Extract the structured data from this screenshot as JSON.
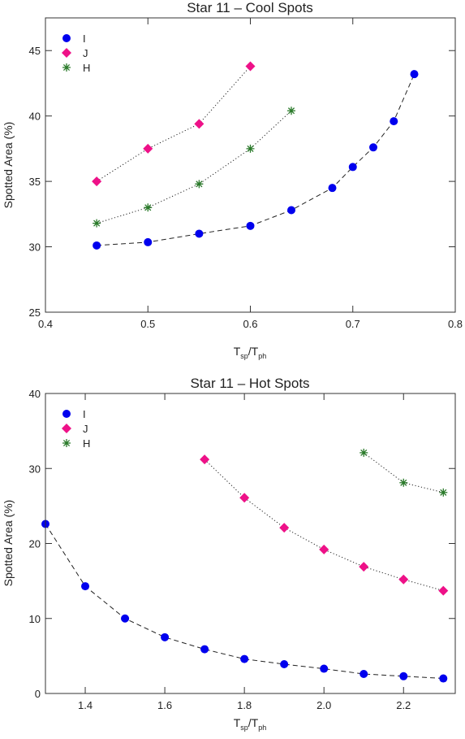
{
  "chart_data": [
    {
      "type": "line",
      "title": "Star 11 – Cool Spots",
      "xlabel": {
        "base": "T",
        "sub1": "sp",
        "sep": "/T",
        "sub2": "ph"
      },
      "ylabel": "Spotted Area (%)",
      "xlim": [
        0.4,
        0.8
      ],
      "ylim": [
        25,
        47.5
      ],
      "xticks": [
        0.4,
        0.5,
        0.6,
        0.7,
        0.8
      ],
      "xticklabels": [
        "0.4",
        "0.5",
        "0.6",
        "0.7",
        "0.8"
      ],
      "yticks": [
        25,
        30,
        35,
        40,
        45
      ],
      "yticklabels": [
        "25",
        "30",
        "35",
        "40",
        "45"
      ],
      "legend_position": "top-left",
      "grid": false,
      "series": [
        {
          "name": "I",
          "marker": "circle",
          "color": "#0000ee",
          "line": "dashed",
          "x": [
            0.45,
            0.5,
            0.55,
            0.6,
            0.64,
            0.68,
            0.7,
            0.72,
            0.74,
            0.76
          ],
          "y": [
            30.1,
            30.35,
            31.0,
            31.6,
            32.8,
            34.5,
            36.1,
            37.6,
            39.6,
            43.2
          ]
        },
        {
          "name": "J",
          "marker": "diamond",
          "color": "#ee1188",
          "line": "dotted",
          "x": [
            0.45,
            0.5,
            0.55,
            0.6
          ],
          "y": [
            35.0,
            37.5,
            39.4,
            43.8
          ]
        },
        {
          "name": "H",
          "marker": "asterisk",
          "color": "#2a7a2a",
          "line": "dotted",
          "x": [
            0.45,
            0.5,
            0.55,
            0.6,
            0.64
          ],
          "y": [
            31.8,
            33.0,
            34.8,
            37.5,
            40.4
          ]
        }
      ]
    },
    {
      "type": "line",
      "title": "Star 11 – Hot Spots",
      "xlabel": {
        "base": "T",
        "sub1": "sp",
        "sep": "/T",
        "sub2": "ph"
      },
      "ylabel": "Spotted Area (%)",
      "xlim": [
        1.3,
        2.33
      ],
      "ylim": [
        0,
        40
      ],
      "xticks": [
        1.4,
        1.6,
        1.8,
        2.0,
        2.2
      ],
      "xticklabels": [
        "1.4",
        "1.6",
        "1.8",
        "2.0",
        "2.2"
      ],
      "yticks": [
        0,
        10,
        20,
        30,
        40
      ],
      "yticklabels": [
        "0",
        "10",
        "20",
        "30",
        "40"
      ],
      "legend_position": "top-left",
      "grid": false,
      "series": [
        {
          "name": "I",
          "marker": "circle",
          "color": "#0000ee",
          "line": "dashed",
          "x": [
            1.3,
            1.4,
            1.5,
            1.6,
            1.7,
            1.8,
            1.9,
            2.0,
            2.1,
            2.2,
            2.3
          ],
          "y": [
            22.6,
            14.3,
            10.0,
            7.5,
            5.9,
            4.6,
            3.9,
            3.3,
            2.6,
            2.3,
            2.0
          ]
        },
        {
          "name": "J",
          "marker": "diamond",
          "color": "#ee1188",
          "line": "dotted",
          "x": [
            1.7,
            1.8,
            1.9,
            2.0,
            2.1,
            2.2,
            2.3
          ],
          "y": [
            31.2,
            26.1,
            22.1,
            19.2,
            16.9,
            15.2,
            13.7
          ]
        },
        {
          "name": "H",
          "marker": "asterisk",
          "color": "#2a7a2a",
          "line": "dotted",
          "x": [
            2.1,
            2.2,
            2.3
          ],
          "y": [
            32.1,
            28.1,
            26.8
          ]
        }
      ]
    }
  ]
}
